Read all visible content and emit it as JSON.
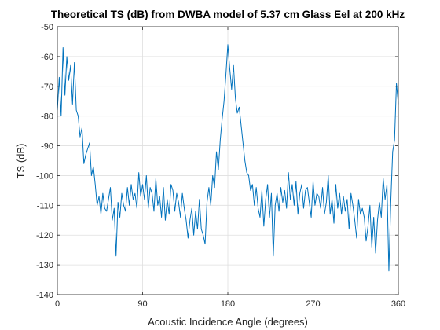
{
  "chart_data": {
    "type": "line",
    "title": "Theoretical TS (dB) from DWBA model of 5.37 cm Glass Eel at 200 kHz",
    "xlabel": "Acoustic Incidence Angle (degrees)",
    "ylabel": "TS (dB)",
    "xlim": [
      0,
      360
    ],
    "ylim": [
      -140,
      -50
    ],
    "xticks": [
      0,
      90,
      180,
      270,
      360
    ],
    "yticks": [
      -140,
      -130,
      -120,
      -110,
      -100,
      -90,
      -80,
      -70,
      -60,
      -50
    ],
    "grid": true,
    "line_color": "#0072bd",
    "series": [
      {
        "x": [
          0,
          2,
          4,
          6,
          8,
          10,
          12,
          14,
          16,
          18,
          20,
          22,
          24,
          26,
          28,
          30,
          32,
          34,
          36,
          38,
          40,
          42,
          44,
          46,
          48,
          50,
          52,
          54,
          56,
          58,
          60,
          62,
          64,
          66,
          68,
          70,
          72,
          74,
          76,
          78,
          80,
          82,
          84,
          86,
          88,
          90,
          92,
          94,
          96,
          98,
          100,
          102,
          104,
          106,
          108,
          110,
          112,
          114,
          116,
          118,
          120,
          122,
          124,
          126,
          128,
          130,
          132,
          134,
          136,
          138,
          140,
          142,
          144,
          146,
          148,
          150,
          152,
          154,
          156,
          158,
          160,
          162,
          164,
          166,
          168,
          170,
          172,
          174,
          176,
          178,
          180,
          182,
          184,
          186,
          188,
          190,
          192,
          194,
          196,
          198,
          200,
          202,
          204,
          206,
          208,
          210,
          212,
          214,
          216,
          218,
          220,
          222,
          224,
          226,
          228,
          230,
          232,
          234,
          236,
          238,
          240,
          242,
          244,
          246,
          248,
          250,
          252,
          254,
          256,
          258,
          260,
          262,
          264,
          266,
          268,
          270,
          272,
          274,
          276,
          278,
          280,
          282,
          284,
          286,
          288,
          290,
          292,
          294,
          296,
          298,
          300,
          302,
          304,
          306,
          308,
          310,
          312,
          314,
          316,
          318,
          320,
          322,
          324,
          326,
          328,
          330,
          332,
          334,
          336,
          338,
          340,
          342,
          344,
          346,
          348,
          350,
          352,
          354,
          356,
          358,
          360
        ],
        "y": [
          -78,
          -67,
          -80,
          -57,
          -73,
          -60,
          -68,
          -63,
          -76,
          -62,
          -78,
          -80,
          -87,
          -84,
          -96,
          -93,
          -91,
          -89,
          -100,
          -97,
          -103,
          -110,
          -107,
          -113,
          -106,
          -111,
          -112,
          -108,
          -104,
          -115,
          -111,
          -127,
          -109,
          -114,
          -106,
          -110,
          -112,
          -104,
          -110,
          -103,
          -108,
          -106,
          -111,
          -99,
          -107,
          -103,
          -108,
          -100,
          -111,
          -104,
          -106,
          -112,
          -101,
          -110,
          -107,
          -114,
          -104,
          -115,
          -108,
          -113,
          -103,
          -105,
          -112,
          -106,
          -109,
          -114,
          -106,
          -111,
          -115,
          -121,
          -115,
          -111,
          -120,
          -112,
          -118,
          -108,
          -118,
          -120,
          -123,
          -109,
          -104,
          -110,
          -100,
          -104,
          -92,
          -98,
          -88,
          -81,
          -75,
          -66,
          -56,
          -64,
          -71,
          -63,
          -74,
          -79,
          -77,
          -83,
          -89,
          -95,
          -99,
          -100,
          -105,
          -103,
          -110,
          -104,
          -111,
          -114,
          -105,
          -117,
          -108,
          -103,
          -114,
          -106,
          -127,
          -110,
          -106,
          -112,
          -104,
          -109,
          -105,
          -111,
          -99,
          -108,
          -103,
          -110,
          -102,
          -113,
          -106,
          -103,
          -111,
          -105,
          -104,
          -109,
          -114,
          -102,
          -110,
          -106,
          -107,
          -111,
          -104,
          -113,
          -109,
          -100,
          -113,
          -108,
          -116,
          -103,
          -111,
          -106,
          -113,
          -107,
          -112,
          -108,
          -118,
          -106,
          -110,
          -115,
          -121,
          -108,
          -113,
          -111,
          -114,
          -122,
          -117,
          -110,
          -124,
          -114,
          -126,
          -115,
          -109,
          -114,
          -101,
          -108,
          -103,
          -132,
          -109,
          -92,
          -88,
          -69,
          -76
        ]
      }
    ]
  }
}
